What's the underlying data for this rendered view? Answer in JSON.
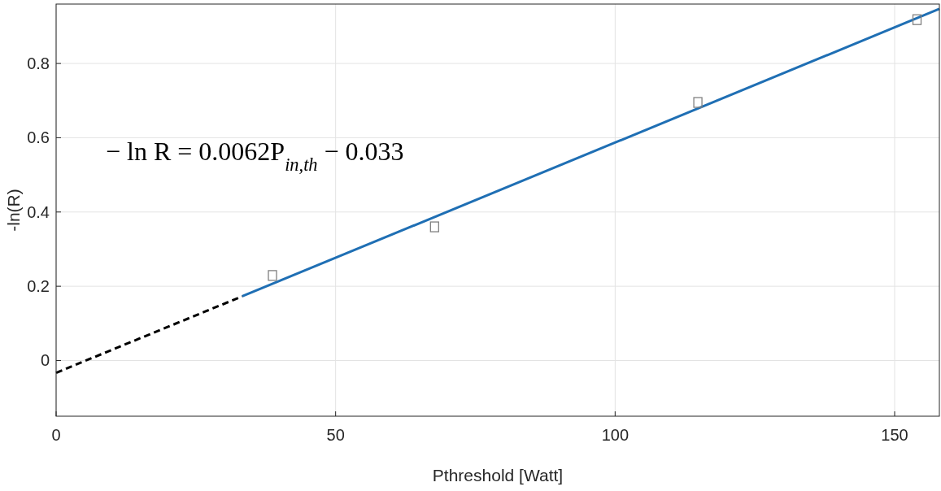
{
  "chart_data": {
    "type": "scatter",
    "xlabel": "Pthreshold [Watt]",
    "ylabel": "-ln(R)",
    "xlim": [
      0,
      158
    ],
    "ylim": [
      -0.15,
      0.96
    ],
    "xticks": [
      0,
      50,
      100,
      150
    ],
    "yticks": [
      0,
      0.2,
      0.4,
      0.6,
      0.8
    ],
    "grid": true,
    "marker": "square",
    "series": [
      {
        "color": "#808080",
        "x": [
          38.7,
          67.7,
          114.8,
          154
        ],
        "values": [
          0.229,
          0.36,
          0.695,
          0.918
        ]
      },
      {
        "type": "line",
        "color": "#000000",
        "line_style": "dashed",
        "marker": "none",
        "x": [
          0,
          33.3
        ],
        "values": [
          -0.033,
          0.173
        ]
      },
      {
        "type": "line",
        "color": "#1f6fb4",
        "line_style": "solid",
        "marker": "none",
        "x": [
          33.3,
          158
        ],
        "values": [
          0.173,
          0.947
        ]
      }
    ],
    "annotations": [
      "− ln R = 0.0062P$_{in,th}$ − 0.033"
    ]
  }
}
